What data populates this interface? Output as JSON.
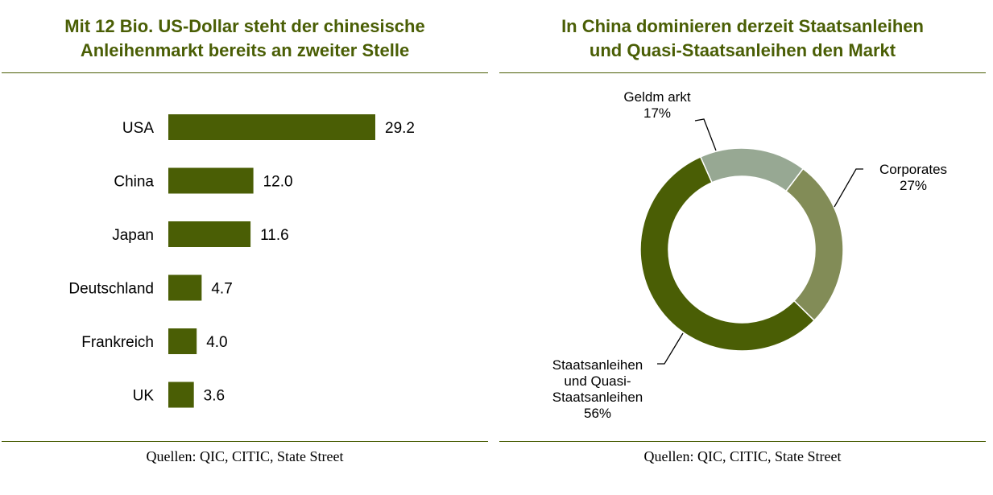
{
  "colors": {
    "accent": "#4a5e05",
    "bar": "#4a5e05",
    "donut_geldmarkt": "#97a893",
    "donut_corporates": "#828c57",
    "donut_staats": "#4a5e05"
  },
  "left": {
    "title_line1": "Mit 12 Bio. US-Dollar steht der chinesische",
    "title_line2": "Anleihenmarkt bereits an zweiter Stelle",
    "source": "Quellen: QIC, CITIC, State Street"
  },
  "right": {
    "title_line1": "In China dominieren derzeit Staatsanleihen",
    "title_line2": "und Quasi-Staatsanleihen den Markt",
    "source": "Quellen: QIC, CITIC, State Street"
  },
  "chart_data": [
    {
      "type": "bar",
      "orientation": "horizontal",
      "title": "Mit 12 Bio. US-Dollar steht der chinesische Anleihenmarkt bereits an zweiter Stelle",
      "categories": [
        "USA",
        "China",
        "Japan",
        "Deutschland",
        "Frankreich",
        "UK"
      ],
      "values": [
        29.2,
        12.0,
        11.6,
        4.7,
        4.0,
        3.6
      ],
      "value_labels": [
        "29.2",
        "12.0",
        "11.6",
        "4.7",
        "4.0",
        "3.6"
      ],
      "xlim": [
        0,
        29.2
      ],
      "grid": false,
      "legend": "none"
    },
    {
      "type": "pie",
      "subtype": "donut",
      "title": "In China dominieren derzeit Staatsanleihen und Quasi-Staatsanleihen den Markt",
      "slices": [
        {
          "name": "Geldmarkt",
          "value": 17,
          "label_lines": [
            "Geldm arkt",
            "17%"
          ]
        },
        {
          "name": "Corporates",
          "value": 27,
          "label_lines": [
            "Corporates",
            "27%"
          ]
        },
        {
          "name": "Staatsanleihen und Quasi-Staatsanleihen",
          "value": 56,
          "label_lines": [
            "Staatsanleihen",
            "und Quasi-",
            "Staatsanleihen",
            "56%"
          ]
        }
      ],
      "start_angle_deg": -24,
      "legend": "none"
    }
  ]
}
